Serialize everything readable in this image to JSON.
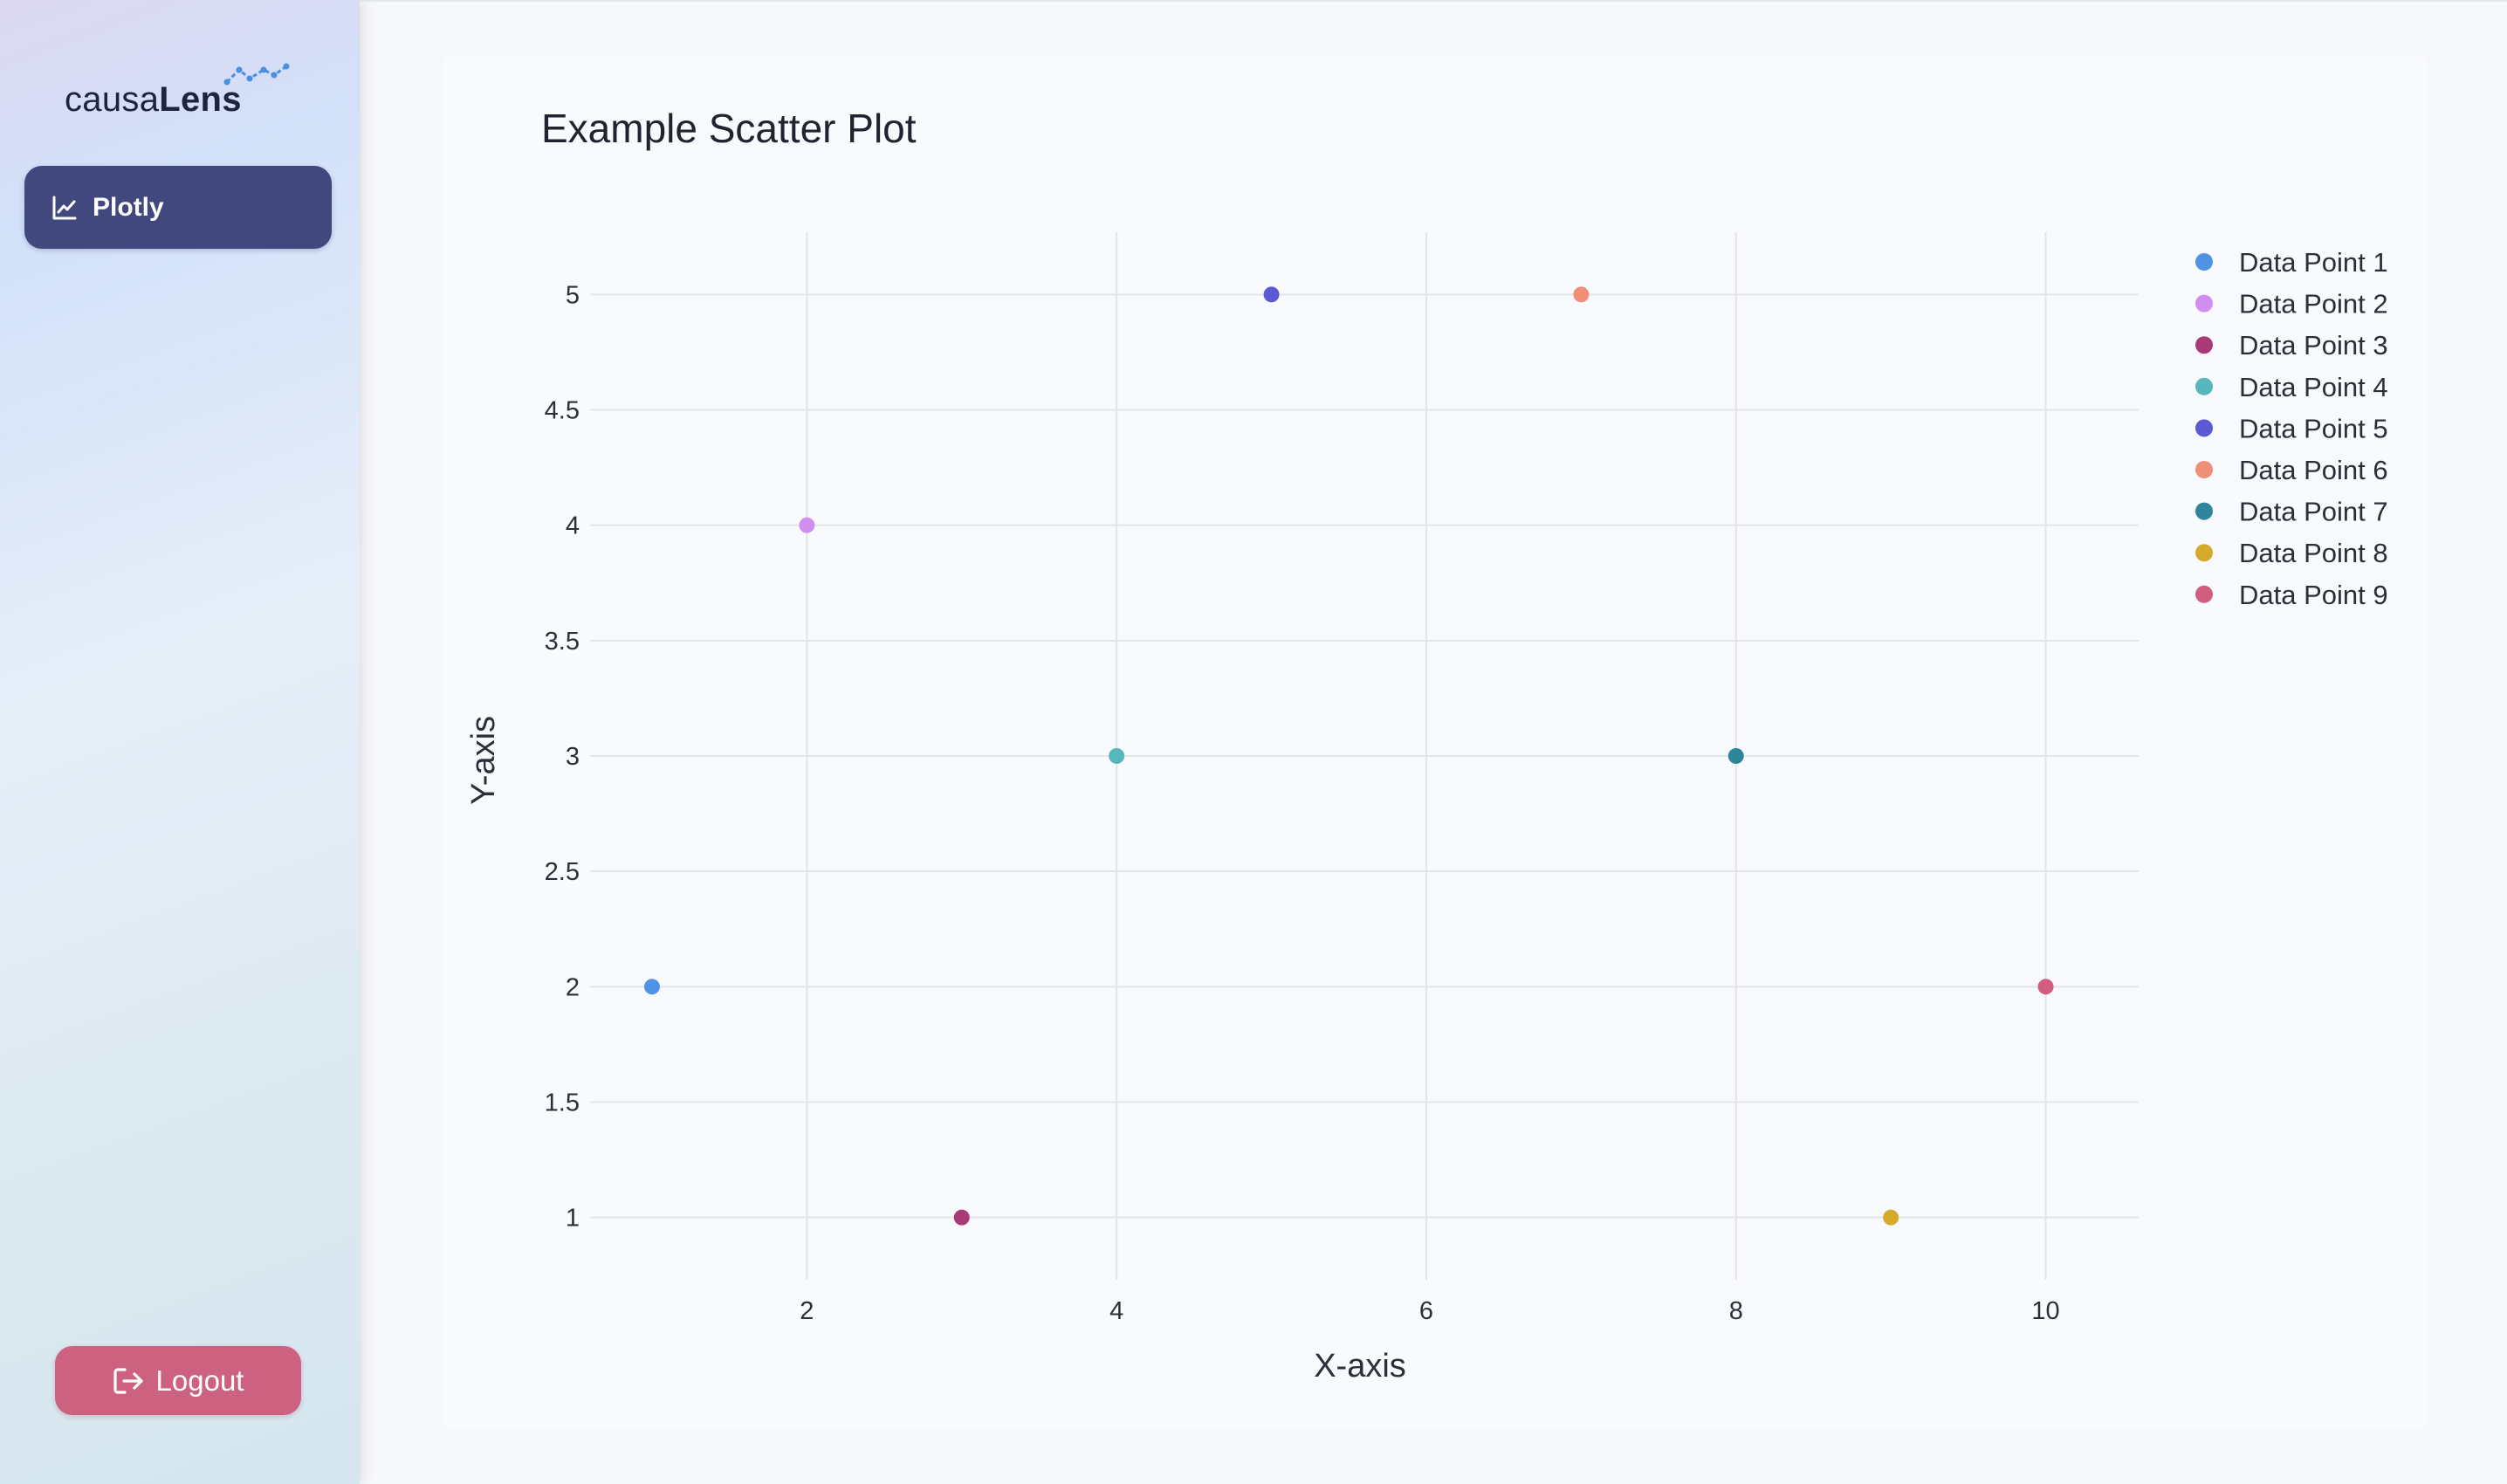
{
  "app": {
    "logo_text_regular": "causa",
    "logo_text_bold": "Lens"
  },
  "sidebar": {
    "items": [
      {
        "label": "Plotly",
        "icon": "line-chart-icon",
        "active": true
      }
    ],
    "logout_label": "Logout",
    "logout_icon": "logout-icon"
  },
  "colors": {
    "nav_active": "#40487e",
    "logout": "#cc6180",
    "grid": "#e3e5ea"
  },
  "chart_data": {
    "type": "scatter",
    "title": "Example Scatter Plot",
    "xlabel": "X-axis",
    "ylabel": "Y-axis",
    "xlim": [
      0.6,
      10.6
    ],
    "ylim": [
      0.73,
      5.27
    ],
    "xticks": [
      2,
      4,
      6,
      8,
      10
    ],
    "yticks": [
      1,
      1.5,
      2,
      2.5,
      3,
      3.5,
      4,
      4.5,
      5
    ],
    "grid": true,
    "legend_position": "top-right",
    "series": [
      {
        "name": "Data Point 1",
        "x": [
          1
        ],
        "y": [
          2
        ],
        "color": "#4f93e6"
      },
      {
        "name": "Data Point 2",
        "x": [
          2
        ],
        "y": [
          4
        ],
        "color": "#d18ef0"
      },
      {
        "name": "Data Point 3",
        "x": [
          3
        ],
        "y": [
          1
        ],
        "color": "#a83a78"
      },
      {
        "name": "Data Point 4",
        "x": [
          4
        ],
        "y": [
          3
        ],
        "color": "#56b8bd"
      },
      {
        "name": "Data Point 5",
        "x": [
          5
        ],
        "y": [
          5
        ],
        "color": "#5a5bd4"
      },
      {
        "name": "Data Point 6",
        "x": [
          7
        ],
        "y": [
          5
        ],
        "color": "#ef8f78"
      },
      {
        "name": "Data Point 7",
        "x": [
          8
        ],
        "y": [
          3
        ],
        "color": "#2f8599"
      },
      {
        "name": "Data Point 8",
        "x": [
          9
        ],
        "y": [
          1
        ],
        "color": "#d6aa2a"
      },
      {
        "name": "Data Point 9",
        "x": [
          10
        ],
        "y": [
          2
        ],
        "color": "#d15e7e"
      }
    ]
  }
}
